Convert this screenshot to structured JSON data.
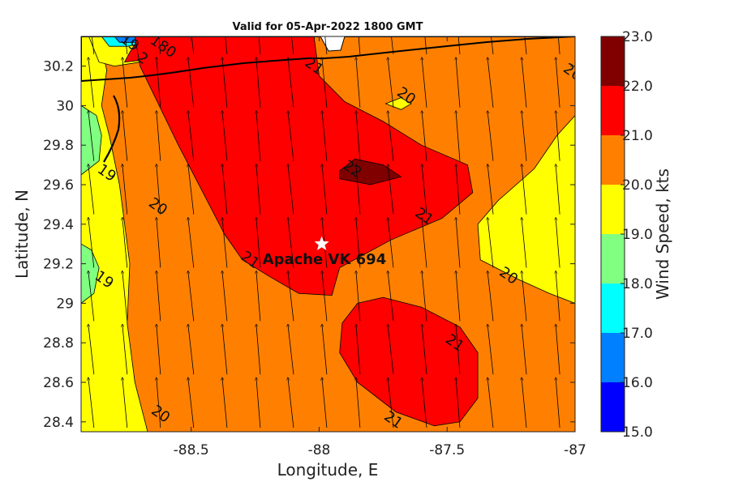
{
  "chart_data": {
    "type": "contour",
    "title": "Valid for 05-Apr-2022 1800 GMT",
    "xlabel": "Longitude, E",
    "ylabel": "Latitude, N",
    "xlim": [
      -88.93,
      -87.0
    ],
    "ylim": [
      28.35,
      30.35
    ],
    "x_ticks": [
      -88.5,
      -88,
      -87.5,
      -87
    ],
    "x_tick_labels": [
      "-88.5",
      "-88",
      "-87.5",
      "-87"
    ],
    "y_ticks": [
      28.4,
      28.6,
      28.8,
      29,
      29.2,
      29.4,
      29.6,
      29.8,
      30,
      30.2
    ],
    "y_tick_labels": [
      "28.4",
      "28.6",
      "28.8",
      "29",
      "29.2",
      "29.4",
      "29.6",
      "29.8",
      "30",
      "30.2"
    ],
    "colorbar": {
      "label": "Wind Speed, kts",
      "min": 15.0,
      "max": 23.0,
      "tick_labels": [
        "15.0",
        "16.0",
        "17.0",
        "18.0",
        "19.0",
        "20.0",
        "21.0",
        "22.0",
        "23.0"
      ],
      "levels": [
        15,
        16,
        17,
        18,
        19,
        20,
        21,
        22,
        23
      ],
      "colors": [
        "#0000ff",
        "#0080ff",
        "#00ffff",
        "#80ff80",
        "#ffff00",
        "#ff8000",
        "#ff0000",
        "#800000"
      ]
    },
    "regions": [
      {
        "name": "band-19-20-west",
        "level": 19,
        "color": "#ffff00",
        "points": [
          [
            -88.93,
            28.35
          ],
          [
            -88.67,
            28.35
          ],
          [
            -88.72,
            28.6
          ],
          [
            -88.75,
            28.9
          ],
          [
            -88.74,
            29.2
          ],
          [
            -88.78,
            29.6
          ],
          [
            -88.82,
            29.85
          ],
          [
            -88.85,
            30.0
          ],
          [
            -88.83,
            30.18
          ],
          [
            -88.86,
            30.35
          ],
          [
            -88.93,
            30.35
          ]
        ]
      },
      {
        "name": "band-19-20-east",
        "level": 19,
        "color": "#ffff00",
        "points": [
          [
            -87.0,
            29.95
          ],
          [
            -87.07,
            29.85
          ],
          [
            -87.16,
            29.68
          ],
          [
            -87.3,
            29.52
          ],
          [
            -87.38,
            29.4
          ],
          [
            -87.37,
            29.22
          ],
          [
            -87.22,
            29.12
          ],
          [
            -87.1,
            29.05
          ],
          [
            -87.0,
            29.0
          ]
        ]
      },
      {
        "name": "band-18-19-west",
        "level": 18,
        "color": "#80ff80",
        "points": [
          [
            -88.93,
            29.65
          ],
          [
            -88.86,
            29.72
          ],
          [
            -88.85,
            29.85
          ],
          [
            -88.87,
            29.95
          ],
          [
            -88.93,
            30.0
          ]
        ]
      },
      {
        "name": "band-18-19-sw",
        "level": 18,
        "color": "#80ff80",
        "points": [
          [
            -88.93,
            29.0
          ],
          [
            -88.88,
            29.05
          ],
          [
            -88.86,
            29.18
          ],
          [
            -88.89,
            29.27
          ],
          [
            -88.93,
            29.3
          ]
        ]
      },
      {
        "name": "band-19-20-nw",
        "level": 19,
        "color": "#ffff00",
        "points": [
          [
            -88.9,
            30.35
          ],
          [
            -88.86,
            30.22
          ],
          [
            -88.8,
            30.2
          ],
          [
            -88.7,
            30.22
          ],
          [
            -88.6,
            30.28
          ],
          [
            -88.5,
            30.35
          ]
        ]
      },
      {
        "name": "band-16-18-north",
        "level": 17,
        "color": "#00ffff",
        "points": [
          [
            -88.85,
            30.35
          ],
          [
            -88.82,
            30.3
          ],
          [
            -88.75,
            30.3
          ],
          [
            -88.66,
            30.32
          ],
          [
            -88.6,
            30.35
          ]
        ]
      },
      {
        "name": "band-16-17-north",
        "level": 16,
        "color": "#0080ff",
        "points": [
          [
            -88.8,
            30.35
          ],
          [
            -88.78,
            30.32
          ],
          [
            -88.72,
            30.32
          ],
          [
            -88.68,
            30.35
          ]
        ]
      },
      {
        "name": "band-21-22-north",
        "level": 21,
        "color": "#ff0000",
        "points": [
          [
            -88.7,
            30.35
          ],
          [
            -88.74,
            30.27
          ],
          [
            -88.76,
            30.22
          ],
          [
            -88.62,
            30.24
          ],
          [
            -88.45,
            30.26
          ],
          [
            -88.3,
            30.28
          ],
          [
            -88.15,
            30.3
          ],
          [
            -88.05,
            30.34
          ],
          [
            -88.03,
            30.35
          ]
        ]
      },
      {
        "name": "band-21-22-central",
        "level": 21,
        "color": "#ff0000",
        "points": [
          [
            -88.7,
            30.2
          ],
          [
            -88.55,
            29.8
          ],
          [
            -88.45,
            29.55
          ],
          [
            -88.37,
            29.35
          ],
          [
            -88.3,
            29.22
          ],
          [
            -88.2,
            29.14
          ],
          [
            -88.08,
            29.05
          ],
          [
            -87.95,
            29.04
          ],
          [
            -87.92,
            29.18
          ],
          [
            -87.72,
            29.32
          ],
          [
            -87.52,
            29.43
          ],
          [
            -87.4,
            29.56
          ],
          [
            -87.42,
            29.7
          ],
          [
            -87.6,
            29.8
          ],
          [
            -87.75,
            29.92
          ],
          [
            -87.9,
            30.02
          ],
          [
            -88.0,
            30.15
          ],
          [
            -88.02,
            30.35
          ],
          [
            -88.72,
            30.35
          ]
        ]
      },
      {
        "name": "band-22-23-central",
        "level": 22,
        "color": "#800000",
        "points": [
          [
            -87.92,
            29.67
          ],
          [
            -87.86,
            29.73
          ],
          [
            -87.75,
            29.7
          ],
          [
            -87.68,
            29.64
          ],
          [
            -87.8,
            29.6
          ],
          [
            -87.92,
            29.63
          ]
        ]
      },
      {
        "name": "band-21-22-south",
        "level": 21,
        "color": "#ff0000",
        "points": [
          [
            -87.91,
            28.9
          ],
          [
            -87.85,
            29.0
          ],
          [
            -87.75,
            29.03
          ],
          [
            -87.6,
            28.98
          ],
          [
            -87.45,
            28.88
          ],
          [
            -87.38,
            28.75
          ],
          [
            -87.38,
            28.52
          ],
          [
            -87.45,
            28.4
          ],
          [
            -87.55,
            28.38
          ],
          [
            -87.7,
            28.45
          ],
          [
            -87.85,
            28.6
          ],
          [
            -87.92,
            28.75
          ]
        ]
      },
      {
        "name": "band-19-20-islet",
        "level": 19,
        "color": "#ffff00",
        "points": [
          [
            -87.74,
            30.01
          ],
          [
            -87.68,
            30.04
          ],
          [
            -87.64,
            30.01
          ],
          [
            -87.68,
            29.98
          ]
        ]
      }
    ],
    "contour_labels": [
      {
        "text": "19",
        "x": -88.75,
        "y": 30.3
      },
      {
        "text": "2",
        "x": -88.7,
        "y": 30.22
      },
      {
        "text": "180",
        "x": -88.62,
        "y": 30.28
      },
      {
        "text": "21",
        "x": -88.03,
        "y": 30.18
      },
      {
        "text": "20",
        "x": -87.67,
        "y": 30.03
      },
      {
        "text": "20",
        "x": -87.02,
        "y": 30.15
      },
      {
        "text": "19",
        "x": -88.84,
        "y": 29.64
      },
      {
        "text": "22",
        "x": -87.88,
        "y": 29.66
      },
      {
        "text": "20",
        "x": -88.64,
        "y": 29.47
      },
      {
        "text": "21",
        "x": -87.6,
        "y": 29.42
      },
      {
        "text": "21",
        "x": -88.28,
        "y": 29.2
      },
      {
        "text": "20",
        "x": -87.27,
        "y": 29.12
      },
      {
        "text": "19",
        "x": -88.85,
        "y": 29.1
      },
      {
        "text": "21",
        "x": -87.48,
        "y": 28.78
      },
      {
        "text": "21",
        "x": -87.72,
        "y": 28.39
      },
      {
        "text": "20",
        "x": -88.63,
        "y": 28.42
      }
    ],
    "station": {
      "name": "Apache VK 694",
      "lon": -87.99,
      "lat": 29.3
    },
    "wind_vectors": {
      "lon_step": 0.13,
      "lat_step": 0.27,
      "direction": "north"
    }
  }
}
